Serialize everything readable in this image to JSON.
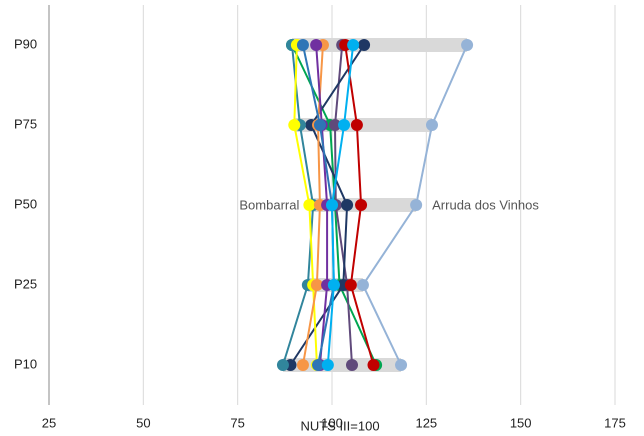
{
  "chart_data": {
    "type": "line",
    "x_label": "NUTS III=100",
    "categories": [
      "P10",
      "P25",
      "P50",
      "P75",
      "P90"
    ],
    "xlim": [
      25,
      175
    ],
    "xticks": [
      25,
      50,
      75,
      100,
      125,
      150,
      175
    ],
    "grid": true,
    "range_color": "#d9d9d9",
    "series": [
      {
        "color": "#00a651",
        "values": [
          111.7,
          102,
          100.8,
          99.5,
          89.4
        ]
      },
      {
        "color": "#604a7b",
        "values": [
          105.3,
          104,
          101,
          100.8,
          102.7
        ]
      },
      {
        "color": "#1f3864",
        "values": [
          89,
          103,
          104,
          94.5,
          108.5
        ]
      },
      {
        "color": "#c00000",
        "values": [
          111,
          105,
          107.7,
          106.6,
          103.5
        ]
      },
      {
        "color": "#31859c",
        "values": [
          87,
          93.6,
          95,
          91.5,
          89.4
        ]
      },
      {
        "name": "Bombarral",
        "color": "#ffff00",
        "values": [
          96,
          95,
          94,
          90,
          90.7
        ]
      },
      {
        "color": "#f79646",
        "values": [
          92.3,
          96,
          96.8,
          96.3,
          97.6
        ]
      },
      {
        "color": "#7030a0",
        "values": [
          96.8,
          98.7,
          98.7,
          97.3,
          95.8
        ]
      },
      {
        "color": "#2e75b6",
        "values": [
          96.3,
          100.5,
          100,
          96.8,
          92.3
        ]
      },
      {
        "color": "#00b0f0",
        "values": [
          98.9,
          100.5,
          100,
          103.2,
          105.6
        ]
      },
      {
        "name": "Arruda dos Vinhos",
        "color": "#95b3d7",
        "values": [
          118.3,
          108.2,
          122.3,
          126.5,
          135.8
        ]
      }
    ]
  }
}
